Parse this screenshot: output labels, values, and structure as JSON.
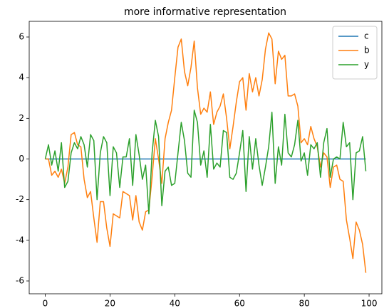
{
  "chart_data": {
    "type": "line",
    "title": "more informative representation",
    "x": [
      0,
      1,
      2,
      3,
      4,
      5,
      6,
      7,
      8,
      9,
      10,
      11,
      12,
      13,
      14,
      15,
      16,
      17,
      18,
      19,
      20,
      21,
      22,
      23,
      24,
      25,
      26,
      27,
      28,
      29,
      30,
      31,
      32,
      33,
      34,
      35,
      36,
      37,
      38,
      39,
      40,
      41,
      42,
      43,
      44,
      45,
      46,
      47,
      48,
      49,
      50,
      51,
      52,
      53,
      54,
      55,
      56,
      57,
      58,
      59,
      60,
      61,
      62,
      63,
      64,
      65,
      66,
      67,
      68,
      69,
      70,
      71,
      72,
      73,
      74,
      75,
      76,
      77,
      78,
      79,
      80,
      81,
      82,
      83,
      84,
      85,
      86,
      87,
      88,
      89,
      90,
      91,
      92,
      93,
      94,
      95,
      96,
      97,
      98,
      99
    ],
    "series": [
      {
        "name": "c",
        "color": "#1f77b4",
        "values": [
          0,
          0,
          0,
          0,
          0,
          0,
          0,
          0,
          0,
          0,
          0,
          0,
          0,
          0,
          0,
          0,
          0,
          0,
          0,
          0,
          0,
          0,
          0,
          0,
          0,
          0,
          0,
          0,
          0,
          0,
          0,
          0,
          0,
          0,
          0,
          0,
          0,
          0,
          0,
          0,
          0,
          0,
          0,
          0,
          0,
          0,
          0,
          0,
          0,
          0,
          0,
          0,
          0,
          0,
          0,
          0,
          0,
          0,
          0,
          0,
          0,
          0,
          0,
          0,
          0,
          0,
          0,
          0,
          0,
          0,
          0,
          0,
          0,
          0,
          0,
          0,
          0,
          0,
          0,
          0,
          0,
          0,
          0,
          0,
          0,
          0,
          0,
          0,
          0,
          0,
          0,
          0,
          0,
          0,
          0,
          0,
          0,
          0,
          0,
          0
        ]
      },
      {
        "name": "b",
        "color": "#ff7f0e",
        "values": [
          0,
          0,
          -0.8,
          -0.6,
          -0.9,
          -0.5,
          -1.2,
          -0.4,
          1.2,
          1.3,
          0.7,
          0.6,
          -1.0,
          -1.9,
          -1.6,
          -2.9,
          -4.1,
          -2.1,
          -2.1,
          -3.4,
          -4.3,
          -2.7,
          -2.8,
          -2.9,
          -1.6,
          -1.7,
          -1.8,
          -3.0,
          -1.8,
          -3.1,
          -3.5,
          -2.6,
          -2.5,
          -0.9,
          1.0,
          0.0,
          -1.2,
          1.0,
          1.8,
          2.4,
          4.0,
          5.5,
          5.9,
          4.3,
          3.6,
          4.5,
          5.8,
          3.5,
          2.2,
          2.5,
          2.3,
          3.3,
          1.7,
          2.3,
          2.6,
          3.2,
          2.0,
          0.5,
          1.6,
          2.8,
          3.8,
          4.0,
          2.4,
          4.2,
          3.3,
          4.0,
          3.1,
          3.9,
          5.4,
          6.2,
          5.9,
          3.7,
          5.3,
          4.9,
          5.1,
          3.1,
          3.1,
          3.2,
          2.6,
          0.8,
          1.0,
          0.7,
          1.6,
          1.0,
          0.6,
          -0.4,
          0.3,
          0.1,
          -1.4,
          -0.4,
          -0.3,
          -1.0,
          -1.1,
          -3.0,
          -3.9,
          -4.9,
          -3.1,
          -3.5,
          -4.2,
          -5.6
        ]
      },
      {
        "name": "y",
        "color": "#2ca02c",
        "values": [
          0,
          0.7,
          -0.3,
          0.4,
          -0.6,
          0.8,
          -1.4,
          -1.1,
          0.3,
          0.8,
          0.5,
          1.1,
          0.7,
          -0.4,
          1.2,
          0.9,
          -2.0,
          0.3,
          1.1,
          0.8,
          -1.8,
          0.6,
          0.3,
          -1.4,
          0.1,
          0.1,
          1.0,
          -1.3,
          1.2,
          0.2,
          -1.0,
          -0.3,
          -2.7,
          0.3,
          1.9,
          1.1,
          -2.3,
          -0.6,
          -0.4,
          -1.3,
          -1.2,
          0.3,
          1.8,
          0.9,
          -0.7,
          -0.9,
          2.4,
          1.8,
          -0.3,
          0.4,
          -0.9,
          1.7,
          -0.5,
          -0.2,
          -0.4,
          1.4,
          1.3,
          -0.9,
          -1.0,
          -0.7,
          0.3,
          1.4,
          -1.6,
          1.1,
          -0.5,
          1.0,
          -0.3,
          -1.3,
          -0.4,
          0.6,
          2.3,
          -1.2,
          0.6,
          -0.3,
          2.2,
          0.3,
          0.1,
          0.7,
          1.9,
          -0.1,
          0.3,
          -0.8,
          0.7,
          0.5,
          0.8,
          -0.9,
          0.8,
          1.5,
          -0.9,
          0.0,
          0.1,
          0.0,
          1.8,
          0.6,
          0.8,
          -2.0,
          0.3,
          0.4,
          1.1,
          -0.6
        ]
      }
    ],
    "xlim": [
      -4.95,
      103.95
    ],
    "xticks": [
      0,
      20,
      40,
      60,
      80,
      100
    ],
    "ylim": [
      -6.63,
      6.77
    ],
    "yticks": [
      -6,
      -4,
      -2,
      0,
      2,
      4,
      6
    ],
    "legend": "upper right"
  }
}
